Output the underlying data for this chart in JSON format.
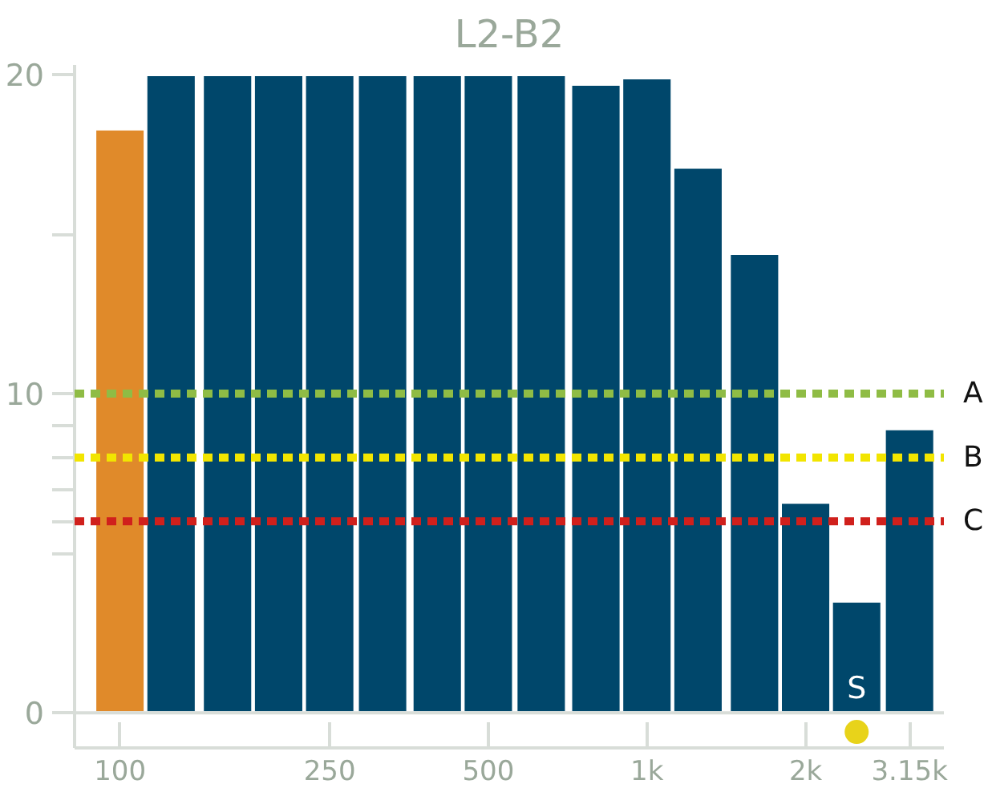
{
  "chart_data": {
    "type": "bar",
    "title": "L2-B2",
    "x": [
      100,
      125,
      160,
      200,
      250,
      315,
      400,
      500,
      630,
      800,
      1000,
      1250,
      1600,
      2000,
      2500,
      3150
    ],
    "values": [
      18.3,
      20,
      20,
      20,
      20,
      20,
      20,
      20,
      20,
      19.7,
      19.9,
      17.1,
      14.4,
      6.6,
      3.5,
      8.9
    ],
    "colors": [
      "#e08a2a",
      "#00476b",
      "#00476b",
      "#00476b",
      "#00476b",
      "#00476b",
      "#00476b",
      "#00476b",
      "#00476b",
      "#00476b",
      "#00476b",
      "#00476b",
      "#00476b",
      "#00476b",
      "#00476b",
      "#00476b"
    ],
    "log": "x",
    "grid": false,
    "xlim": [
      82,
      3660
    ],
    "ylim": [
      -1.1,
      20.3
    ],
    "xticks": [
      100,
      250,
      500,
      {
        "value": 1000,
        "label": "1k"
      },
      {
        "value": 2000,
        "label": "2k"
      },
      {
        "value": 3150,
        "label": "3.15k"
      }
    ],
    "yticks": [
      0,
      {
        "value": 5,
        "label": null
      },
      {
        "value": 6,
        "label": null
      },
      {
        "value": 7,
        "label": null
      },
      {
        "value": 8,
        "label": null
      },
      {
        "value": 9,
        "label": null
      },
      10,
      {
        "value": 15,
        "label": null
      },
      20
    ],
    "ref_lines": [
      {
        "axis": "y",
        "value": 10,
        "label": "A",
        "color": "#8fbc45",
        "line_style": "dotted"
      },
      {
        "axis": "y",
        "value": 8,
        "label": "B",
        "color": "#f2e500",
        "line_style": "dotted"
      },
      {
        "axis": "y",
        "value": 6,
        "label": "C",
        "color": "#d0201c",
        "line_style": "dotted"
      }
    ],
    "annotations": [
      {
        "text": "S",
        "x": 2500,
        "y": -0.6
      }
    ]
  }
}
